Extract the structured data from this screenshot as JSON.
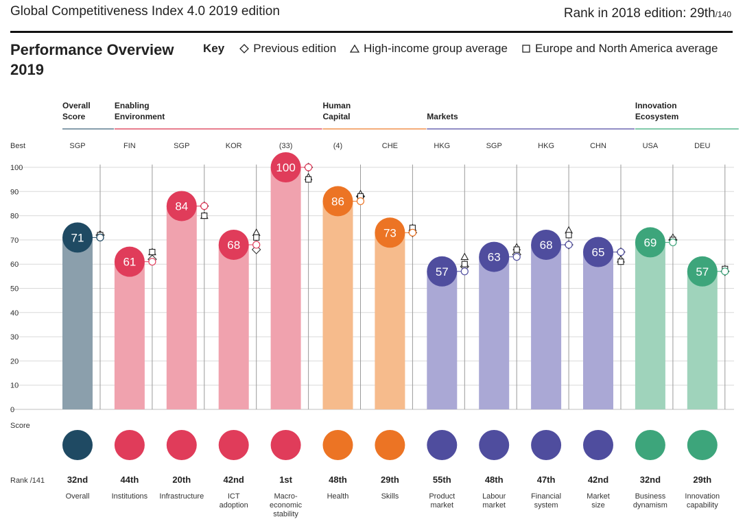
{
  "header": {
    "title": "Global Competitiveness Index 4.0 2019 edition",
    "rank_label": "Rank in 2018 edition: 29th",
    "rank_total": "/140"
  },
  "overview": {
    "title": "Performance Overview 2019"
  },
  "key": {
    "label": "Key",
    "previous": "Previous edition",
    "high_income": "High-income group average",
    "europe": "Europe and North America average"
  },
  "chart_data": {
    "type": "bar",
    "y_label_top": "Best",
    "y_label_bottom": "Score",
    "rank_label": "Rank /141",
    "ylim": [
      0,
      100
    ],
    "yticks": [
      0,
      10,
      20,
      30,
      40,
      50,
      60,
      70,
      80,
      90,
      100
    ],
    "grid": true,
    "groups": [
      {
        "name": "Overall Score",
        "lines": [
          "Overall",
          "Score"
        ],
        "color": "#5d7d8f",
        "start": 0,
        "end": 0
      },
      {
        "name": "Enabling Environment",
        "lines": [
          "Enabling",
          "Environment"
        ],
        "color": "#e05269",
        "start": 1,
        "end": 4
      },
      {
        "name": "Human Capital",
        "lines": [
          "Human",
          "Capital"
        ],
        "color": "#f0914d",
        "start": 5,
        "end": 6
      },
      {
        "name": "Markets",
        "lines": [
          "Markets"
        ],
        "color": "#6b66b0",
        "start": 7,
        "end": 10
      },
      {
        "name": "Innovation Ecosystem",
        "lines": [
          "Innovation",
          "Ecosystem"
        ],
        "color": "#57b78e",
        "start": 11,
        "end": 12
      }
    ],
    "categories": [
      "Overall",
      "Institutions",
      "Infrastructure",
      "ICT adoption",
      "Macro-economic stability",
      "Health",
      "Skills",
      "Product market",
      "Labour market",
      "Financial system",
      "Market size",
      "Business dynamism",
      "Innovation capability"
    ],
    "category_lines": [
      [
        "Overall"
      ],
      [
        "Institutions"
      ],
      [
        "Infrastructure"
      ],
      [
        "ICT",
        "adoption"
      ],
      [
        "Macro-",
        "economic",
        "stability"
      ],
      [
        "Health"
      ],
      [
        "Skills"
      ],
      [
        "Product",
        "market"
      ],
      [
        "Labour",
        "market"
      ],
      [
        "Financial",
        "system"
      ],
      [
        "Market",
        "size"
      ],
      [
        "Business",
        "dynamism"
      ],
      [
        "Innovation",
        "capability"
      ]
    ],
    "best": [
      "SGP",
      "FIN",
      "SGP",
      "KOR",
      "(33)",
      "(4)",
      "CHE",
      "HKG",
      "SGP",
      "HKG",
      "CHN",
      "USA",
      "DEU"
    ],
    "values": [
      71,
      61,
      84,
      68,
      100,
      86,
      73,
      57,
      63,
      68,
      65,
      69,
      57
    ],
    "ranks": [
      "32nd",
      "44th",
      "20th",
      "42nd",
      "1st",
      "48th",
      "29th",
      "55th",
      "48th",
      "47th",
      "42nd",
      "32nd",
      "29th"
    ],
    "group_index": [
      0,
      1,
      1,
      1,
      1,
      2,
      2,
      3,
      3,
      3,
      3,
      4,
      4
    ],
    "series": [
      {
        "name": "Previous edition",
        "marker": "diamond",
        "values": [
          72,
          62,
          84,
          66,
          100,
          88,
          73,
          59,
          64,
          68,
          65,
          70,
          57
        ]
      },
      {
        "name": "High-income group average",
        "marker": "triangle",
        "values": [
          72,
          65,
          80,
          73,
          96,
          89,
          75,
          63,
          67,
          74,
          62,
          71,
          58
        ]
      },
      {
        "name": "Europe and North America average",
        "marker": "square",
        "values": [
          72,
          65,
          80,
          71,
          95,
          88,
          75,
          60,
          66,
          72,
          61,
          70,
          58
        ]
      }
    ],
    "colors": {
      "bar_light": [
        "#8b9fac",
        "#f0a2ae",
        "#f0a2ae",
        "#f0a2ae",
        "#f0a2ae",
        "#f6bb8c",
        "#f6bb8c",
        "#aaa8d5",
        "#aaa8d5",
        "#aaa8d5",
        "#aaa8d5",
        "#9fd3bb",
        "#9fd3bb"
      ],
      "circle_dark": [
        "#1f4a63",
        "#e03c5a",
        "#e03c5a",
        "#e03c5a",
        "#e03c5a",
        "#ec7424",
        "#ec7424",
        "#4f4d9e",
        "#4f4d9e",
        "#4f4d9e",
        "#4f4d9e",
        "#3da57b",
        "#3da57b"
      ]
    }
  }
}
